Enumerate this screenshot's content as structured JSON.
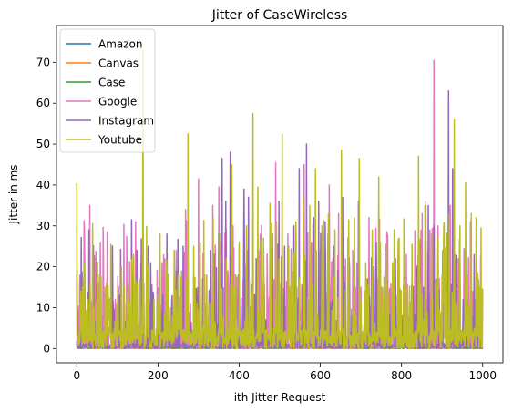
{
  "chart_data": {
    "type": "line",
    "title": "Jitter of CaseWireless",
    "xlabel": "ith Jitter Request",
    "ylabel": "Jitter in ms",
    "xlim": [
      -50,
      1050
    ],
    "ylim": [
      -3.5,
      79
    ],
    "xticks": [
      0,
      200,
      400,
      600,
      800,
      1000
    ],
    "yticks": [
      0,
      10,
      20,
      30,
      40,
      50,
      60,
      70
    ],
    "grid": false,
    "legend_position": "top-left",
    "n_points": 1001,
    "series": [
      {
        "name": "Amazon",
        "color": "#1f77b4",
        "baseline": 0.2,
        "peaks": [
          [
            0,
            1.0
          ],
          [
            95,
            0.6
          ],
          [
            260,
            0.8
          ],
          [
            330,
            0.7
          ],
          [
            520,
            0.6
          ],
          [
            700,
            0.5
          ],
          [
            880,
            0.8
          ],
          [
            990,
            0.5
          ]
        ]
      },
      {
        "name": "Canvas",
        "color": "#ff7f0e",
        "baseline": 0.2,
        "peaks": [
          [
            0,
            1.2
          ],
          [
            120,
            0.5
          ],
          [
            240,
            0.7
          ],
          [
            430,
            0.6
          ],
          [
            600,
            0.9
          ],
          [
            760,
            0.5
          ],
          [
            920,
            0.6
          ]
        ]
      },
      {
        "name": "Case",
        "color": "#2ca02c",
        "baseline": 0.3,
        "peaks": [
          [
            0,
            1.8
          ],
          [
            80,
            0.8
          ],
          [
            320,
            0.9
          ],
          [
            500,
            0.7
          ],
          [
            560,
            1.2
          ],
          [
            780,
            0.6
          ],
          [
            970,
            0.7
          ]
        ]
      },
      {
        "name": "Google",
        "color": "#e377c2",
        "baseline": 0.5,
        "peaks": [
          [
            0,
            30.5
          ],
          [
            8,
            18
          ],
          [
            20,
            16
          ],
          [
            32,
            35
          ],
          [
            45,
            22
          ],
          [
            58,
            26
          ],
          [
            68,
            14
          ],
          [
            75,
            28.5
          ],
          [
            95,
            12
          ],
          [
            110,
            18
          ],
          [
            128,
            9
          ],
          [
            140,
            22
          ],
          [
            158,
            21
          ],
          [
            175,
            11
          ],
          [
            190,
            12
          ],
          [
            210,
            21
          ],
          [
            225,
            15
          ],
          [
            245,
            24
          ],
          [
            268,
            34
          ],
          [
            280,
            11
          ],
          [
            300,
            41.5
          ],
          [
            315,
            18
          ],
          [
            335,
            35
          ],
          [
            350,
            39.5
          ],
          [
            372,
            19
          ],
          [
            385,
            30
          ],
          [
            410,
            17
          ],
          [
            425,
            14
          ],
          [
            448,
            24
          ],
          [
            470,
            13
          ],
          [
            490,
            45.5
          ],
          [
            505,
            20
          ],
          [
            520,
            28
          ],
          [
            540,
            29
          ],
          [
            560,
            45
          ],
          [
            578,
            26
          ],
          [
            600,
            24
          ],
          [
            622,
            40
          ],
          [
            645,
            33
          ],
          [
            660,
            20
          ],
          [
            680,
            24
          ],
          [
            700,
            15
          ],
          [
            720,
            32
          ],
          [
            742,
            17
          ],
          [
            760,
            22
          ],
          [
            790,
            13
          ],
          [
            812,
            23
          ],
          [
            834,
            24
          ],
          [
            851,
            33
          ],
          [
            860,
            36
          ],
          [
            870,
            29
          ],
          [
            880,
            70.5
          ],
          [
            890,
            30
          ],
          [
            905,
            24
          ],
          [
            920,
            35
          ],
          [
            940,
            22
          ],
          [
            955,
            23
          ],
          [
            970,
            31
          ],
          [
            985,
            18
          ],
          [
            995,
            22.5
          ]
        ]
      },
      {
        "name": "Instagram",
        "color": "#9467bd",
        "baseline": 0.6,
        "peaks": [
          [
            0,
            18
          ],
          [
            12,
            11
          ],
          [
            30,
            29
          ],
          [
            50,
            21
          ],
          [
            72,
            10
          ],
          [
            88,
            25
          ],
          [
            105,
            13
          ],
          [
            135,
            31.5
          ],
          [
            148,
            24
          ],
          [
            165,
            16
          ],
          [
            182,
            21
          ],
          [
            205,
            17
          ],
          [
            222,
            28
          ],
          [
            245,
            19
          ],
          [
            262,
            25
          ],
          [
            290,
            13
          ],
          [
            310,
            17
          ],
          [
            330,
            24
          ],
          [
            350,
            28
          ],
          [
            358,
            46.5
          ],
          [
            367,
            36
          ],
          [
            378,
            48
          ],
          [
            398,
            18
          ],
          [
            412,
            39
          ],
          [
            423,
            37
          ],
          [
            442,
            22
          ],
          [
            460,
            16
          ],
          [
            482,
            28
          ],
          [
            498,
            36
          ],
          [
            512,
            25
          ],
          [
            535,
            30
          ],
          [
            548,
            44
          ],
          [
            566,
            50
          ],
          [
            584,
            32
          ],
          [
            596,
            36
          ],
          [
            612,
            31
          ],
          [
            634,
            25
          ],
          [
            655,
            37
          ],
          [
            672,
            20
          ],
          [
            694,
            36
          ],
          [
            716,
            17
          ],
          [
            738,
            26
          ],
          [
            760,
            24
          ],
          [
            785,
            22
          ],
          [
            806,
            20
          ],
          [
            826,
            16
          ],
          [
            846,
            26
          ],
          [
            866,
            35
          ],
          [
            880,
            30
          ],
          [
            902,
            24
          ],
          [
            916,
            63
          ],
          [
            926,
            44
          ],
          [
            944,
            22
          ],
          [
            960,
            18
          ],
          [
            978,
            3
          ],
          [
            992,
            2
          ]
        ]
      },
      {
        "name": "Youtube",
        "color": "#bcbd22",
        "baseline": 2.5,
        "peaks": [
          [
            0,
            40.5
          ],
          [
            10,
            14
          ],
          [
            18,
            20.5
          ],
          [
            28,
            12
          ],
          [
            42,
            10
          ],
          [
            56,
            18
          ],
          [
            70,
            15
          ],
          [
            84,
            25.5
          ],
          [
            98,
            11
          ],
          [
            110,
            20
          ],
          [
            124,
            13
          ],
          [
            140,
            23
          ],
          [
            156,
            17
          ],
          [
            163,
            73
          ],
          [
            176,
            19
          ],
          [
            190,
            12
          ],
          [
            205,
            28
          ],
          [
            222,
            20
          ],
          [
            240,
            24
          ],
          [
            258,
            19
          ],
          [
            274,
            52.5
          ],
          [
            288,
            25
          ],
          [
            304,
            26
          ],
          [
            320,
            18
          ],
          [
            336,
            32
          ],
          [
            352,
            28
          ],
          [
            368,
            22
          ],
          [
            382,
            45
          ],
          [
            400,
            26
          ],
          [
            418,
            30
          ],
          [
            434,
            57.5
          ],
          [
            446,
            39.5
          ],
          [
            460,
            27
          ],
          [
            476,
            35.5
          ],
          [
            492,
            31
          ],
          [
            506,
            52.5
          ],
          [
            522,
            25
          ],
          [
            540,
            31
          ],
          [
            558,
            37
          ],
          [
            574,
            35
          ],
          [
            588,
            44
          ],
          [
            604,
            30
          ],
          [
            620,
            33
          ],
          [
            636,
            29
          ],
          [
            652,
            48.5
          ],
          [
            668,
            27
          ],
          [
            684,
            32
          ],
          [
            696,
            46.5
          ],
          [
            712,
            21
          ],
          [
            728,
            29
          ],
          [
            744,
            42
          ],
          [
            762,
            25.5
          ],
          [
            778,
            21
          ],
          [
            794,
            27
          ],
          [
            810,
            15
          ],
          [
            826,
            25.5
          ],
          [
            842,
            47
          ],
          [
            858,
            35
          ],
          [
            874,
            28
          ],
          [
            890,
            27
          ],
          [
            904,
            30
          ],
          [
            918,
            33
          ],
          [
            930,
            56
          ],
          [
            944,
            30
          ],
          [
            958,
            40.5
          ],
          [
            972,
            33
          ],
          [
            984,
            32
          ],
          [
            996,
            29.5
          ]
        ]
      }
    ]
  }
}
